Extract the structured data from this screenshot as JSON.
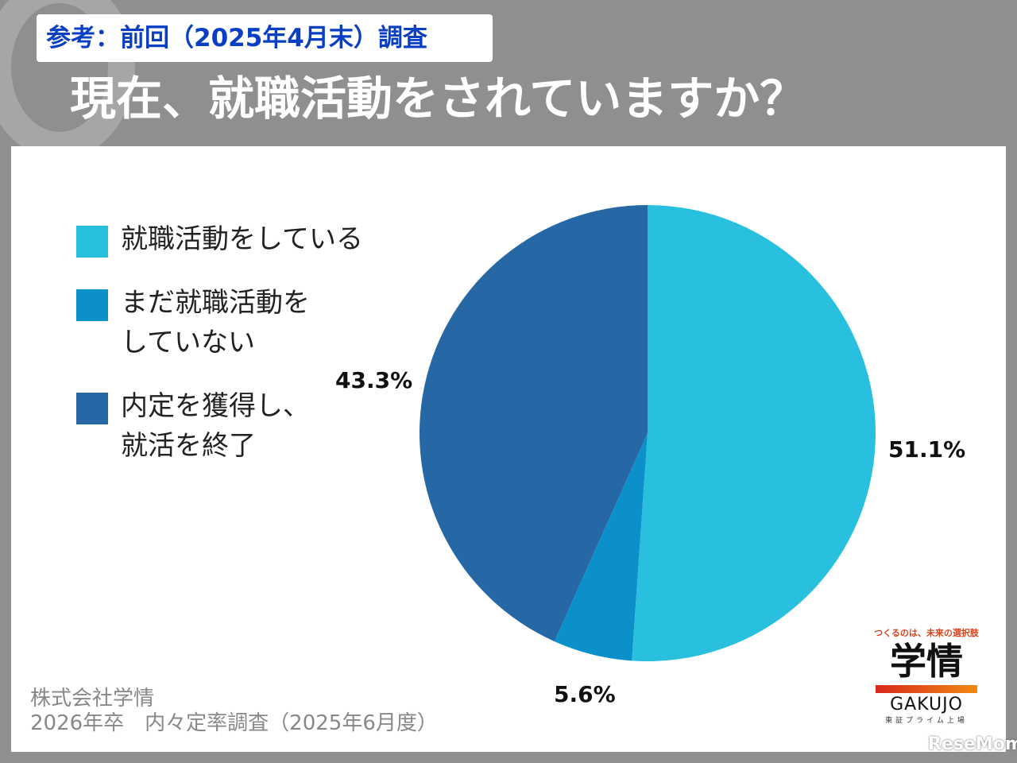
{
  "header": {
    "subtitle": "参考：前回（2025年4月末）調査",
    "title": "現在、就職活動をされていますか？"
  },
  "chart_data": {
    "type": "pie",
    "title": "現在、就職活動をされていますか？",
    "start": "top",
    "direction": "clockwise",
    "legend_position": "left",
    "series": [
      {
        "name": "就職活動をしている",
        "value": 51.1,
        "label": "51.1%",
        "color": "#29c0e0"
      },
      {
        "name": "まだ就職活動を\nしていない",
        "value": 5.6,
        "label": "5.6%",
        "color": "#0b90c9"
      },
      {
        "name": "内定を獲得し、\n就活を終了",
        "value": 43.3,
        "label": "43.3%",
        "color": "#2667a6"
      }
    ]
  },
  "source": "株式会社学情\n2026年卒　内々定率調査（2025年6月度）",
  "logo": {
    "tagline": "つくるのは、未来の選択肢",
    "kanji": "学情",
    "roman": "GAKUJO",
    "exchange": "東証プライム上場"
  },
  "watermark": "ReseMom"
}
